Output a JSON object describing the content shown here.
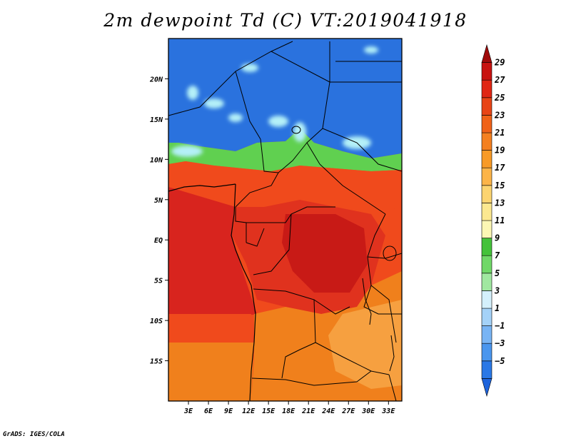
{
  "title": "2m dewpoint Td (C) VT:2019041918",
  "credit": "GrADS: IGES/COLA",
  "map": {
    "variable": "2m dewpoint",
    "units": "C",
    "valid_time": "2019041918",
    "lon_range": [
      0,
      35
    ],
    "lat_range": [
      -20,
      25
    ],
    "lon_ticks": [
      {
        "value": 3,
        "label": "3E"
      },
      {
        "value": 6,
        "label": "6E"
      },
      {
        "value": 9,
        "label": "9E"
      },
      {
        "value": 12,
        "label": "12E"
      },
      {
        "value": 15,
        "label": "15E"
      },
      {
        "value": 18,
        "label": "18E"
      },
      {
        "value": 21,
        "label": "21E"
      },
      {
        "value": 24,
        "label": "24E"
      },
      {
        "value": 27,
        "label": "27E"
      },
      {
        "value": 30,
        "label": "30E"
      },
      {
        "value": 33,
        "label": "33E"
      }
    ],
    "lat_ticks": [
      {
        "value": 20,
        "label": "20N"
      },
      {
        "value": 15,
        "label": "15N"
      },
      {
        "value": 10,
        "label": "10N"
      },
      {
        "value": 5,
        "label": "5N"
      },
      {
        "value": 0,
        "label": "EQ"
      },
      {
        "value": -5,
        "label": "5S"
      },
      {
        "value": -10,
        "label": "10S"
      },
      {
        "value": -15,
        "label": "15S"
      }
    ],
    "colors": {
      "sea_west": "#d8241e",
      "sea_south": "#f0801c",
      "north_dry": "#2a72de",
      "north_dry_light": "#4a90e8",
      "congo_core": "#c81a16",
      "congo": "#e0321e",
      "savanna": "#f04a1c",
      "transition_green": "#60d050",
      "transition_cyan": "#b4f0f8",
      "south_east": "#f6a040",
      "borders": "#000000"
    }
  },
  "colorbar": {
    "labels": [
      "29",
      "27",
      "25",
      "23",
      "21",
      "19",
      "17",
      "15",
      "13",
      "11",
      "9",
      "7",
      "5",
      "3",
      "1",
      "−1",
      "−3",
      "−5"
    ],
    "colors": [
      "#1e64dc",
      "#2a78e6",
      "#4a96ee",
      "#78b4f4",
      "#a4d2f8",
      "#d4f0fc",
      "#a0e8a0",
      "#70d868",
      "#44c23a",
      "#fcf7b4",
      "#fce890",
      "#fcd470",
      "#fcb448",
      "#f89a26",
      "#f48020",
      "#f06218",
      "#e84416",
      "#e02614",
      "#c81210",
      "#a00a0a"
    ]
  }
}
